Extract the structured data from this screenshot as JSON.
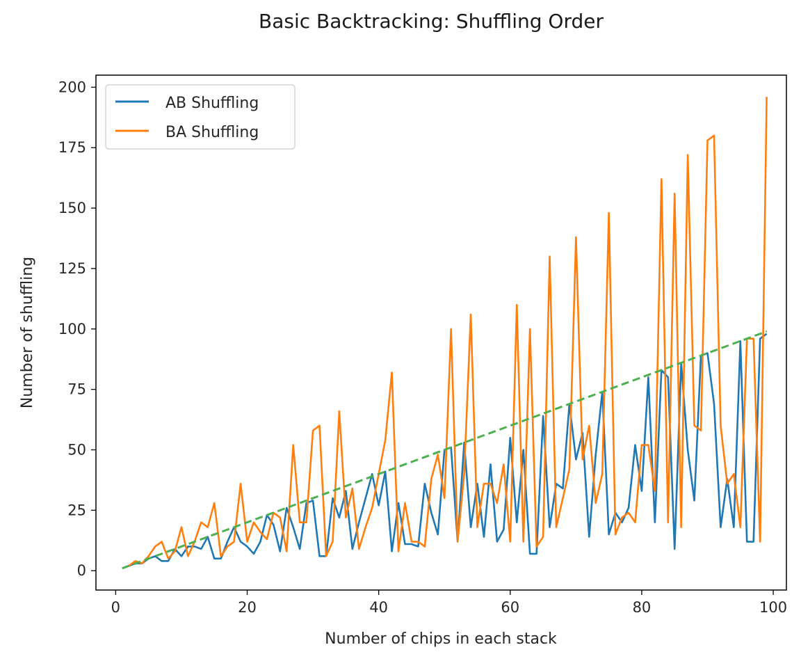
{
  "chart_data": {
    "type": "line",
    "title": "Basic Backtracking: Shuffling Order",
    "xlabel": "Number of chips in each stack",
    "ylabel": "Number of shuffling",
    "xlim": [
      -3,
      102
    ],
    "ylim": [
      -8,
      205
    ],
    "xticks": [
      0,
      20,
      40,
      60,
      80,
      100
    ],
    "yticks": [
      0,
      25,
      50,
      75,
      100,
      125,
      150,
      175,
      200
    ],
    "grid": false,
    "legend": "top-left",
    "x": [
      1,
      2,
      3,
      4,
      5,
      6,
      7,
      8,
      9,
      10,
      11,
      12,
      13,
      14,
      15,
      16,
      17,
      18,
      19,
      20,
      21,
      22,
      23,
      24,
      25,
      26,
      27,
      28,
      29,
      30,
      31,
      32,
      33,
      34,
      35,
      36,
      37,
      38,
      39,
      40,
      41,
      42,
      43,
      44,
      45,
      46,
      47,
      48,
      49,
      50,
      51,
      52,
      53,
      54,
      55,
      56,
      57,
      58,
      59,
      60,
      61,
      62,
      63,
      64,
      65,
      66,
      67,
      68,
      69,
      70,
      71,
      72,
      73,
      74,
      75,
      76,
      77,
      78,
      79,
      80,
      81,
      82,
      83,
      84,
      85,
      86,
      87,
      88,
      89,
      90,
      91,
      92,
      93,
      94,
      95,
      96,
      97,
      98,
      99
    ],
    "series": [
      {
        "name": "AB Shuffling",
        "color": "#1f77b4",
        "values": [
          1,
          2,
          3,
          3,
          5,
          6,
          4,
          4,
          9,
          6,
          10,
          10,
          9,
          14,
          5,
          5,
          12,
          18,
          12,
          10,
          7,
          12,
          23,
          19,
          8,
          26,
          18,
          9,
          28,
          29,
          6,
          6,
          30,
          22,
          33,
          9,
          20,
          30,
          40,
          27,
          41,
          8,
          28,
          11,
          11,
          10,
          36,
          24,
          15,
          50,
          51,
          12,
          53,
          18,
          36,
          14,
          44,
          12,
          17,
          55,
          20,
          50,
          7,
          7,
          64,
          18,
          36,
          34,
          69,
          46,
          57,
          14,
          48,
          74,
          15,
          24,
          20,
          26,
          52,
          33,
          80,
          20,
          83,
          80,
          9,
          86,
          50,
          29,
          89,
          90,
          69,
          18,
          38,
          18,
          95,
          12,
          12,
          96,
          98
        ]
      },
      {
        "name": "BA Shuffling",
        "color": "#ff7f0e",
        "values": [
          1,
          2,
          4,
          3,
          6,
          10,
          12,
          5,
          8,
          18,
          6,
          12,
          20,
          18,
          28,
          6,
          10,
          12,
          36,
          12,
          20,
          16,
          13,
          24,
          22,
          8,
          52,
          20,
          20,
          58,
          60,
          6,
          12,
          66,
          22,
          34,
          9,
          18,
          26,
          40,
          54,
          82,
          8,
          28,
          12,
          12,
          10,
          38,
          48,
          30,
          100,
          12,
          40,
          106,
          18,
          36,
          36,
          28,
          44,
          12,
          110,
          12,
          100,
          10,
          14,
          130,
          18,
          30,
          42,
          138,
          46,
          60,
          28,
          40,
          148,
          15,
          22,
          24,
          20,
          52,
          52,
          33,
          162,
          20,
          156,
          18,
          172,
          60,
          58,
          178,
          180,
          60,
          36,
          40,
          18,
          96,
          96,
          12,
          196
        ]
      },
      {
        "name": "",
        "color": "#4caf50",
        "dashed": true,
        "values": [
          1,
          2,
          3,
          4,
          5,
          6,
          7,
          8,
          9,
          10,
          11,
          12,
          13,
          14,
          15,
          16,
          17,
          18,
          19,
          20,
          21,
          22,
          23,
          24,
          25,
          26,
          27,
          28,
          29,
          30,
          31,
          32,
          33,
          34,
          35,
          36,
          37,
          38,
          39,
          40,
          41,
          42,
          43,
          44,
          45,
          46,
          47,
          48,
          49,
          50,
          51,
          52,
          53,
          54,
          55,
          56,
          57,
          58,
          59,
          60,
          61,
          62,
          63,
          64,
          65,
          66,
          67,
          68,
          69,
          70,
          71,
          72,
          73,
          74,
          75,
          76,
          77,
          78,
          79,
          80,
          81,
          82,
          83,
          84,
          85,
          86,
          87,
          88,
          89,
          90,
          91,
          92,
          93,
          94,
          95,
          96,
          97,
          98,
          99
        ]
      }
    ]
  }
}
